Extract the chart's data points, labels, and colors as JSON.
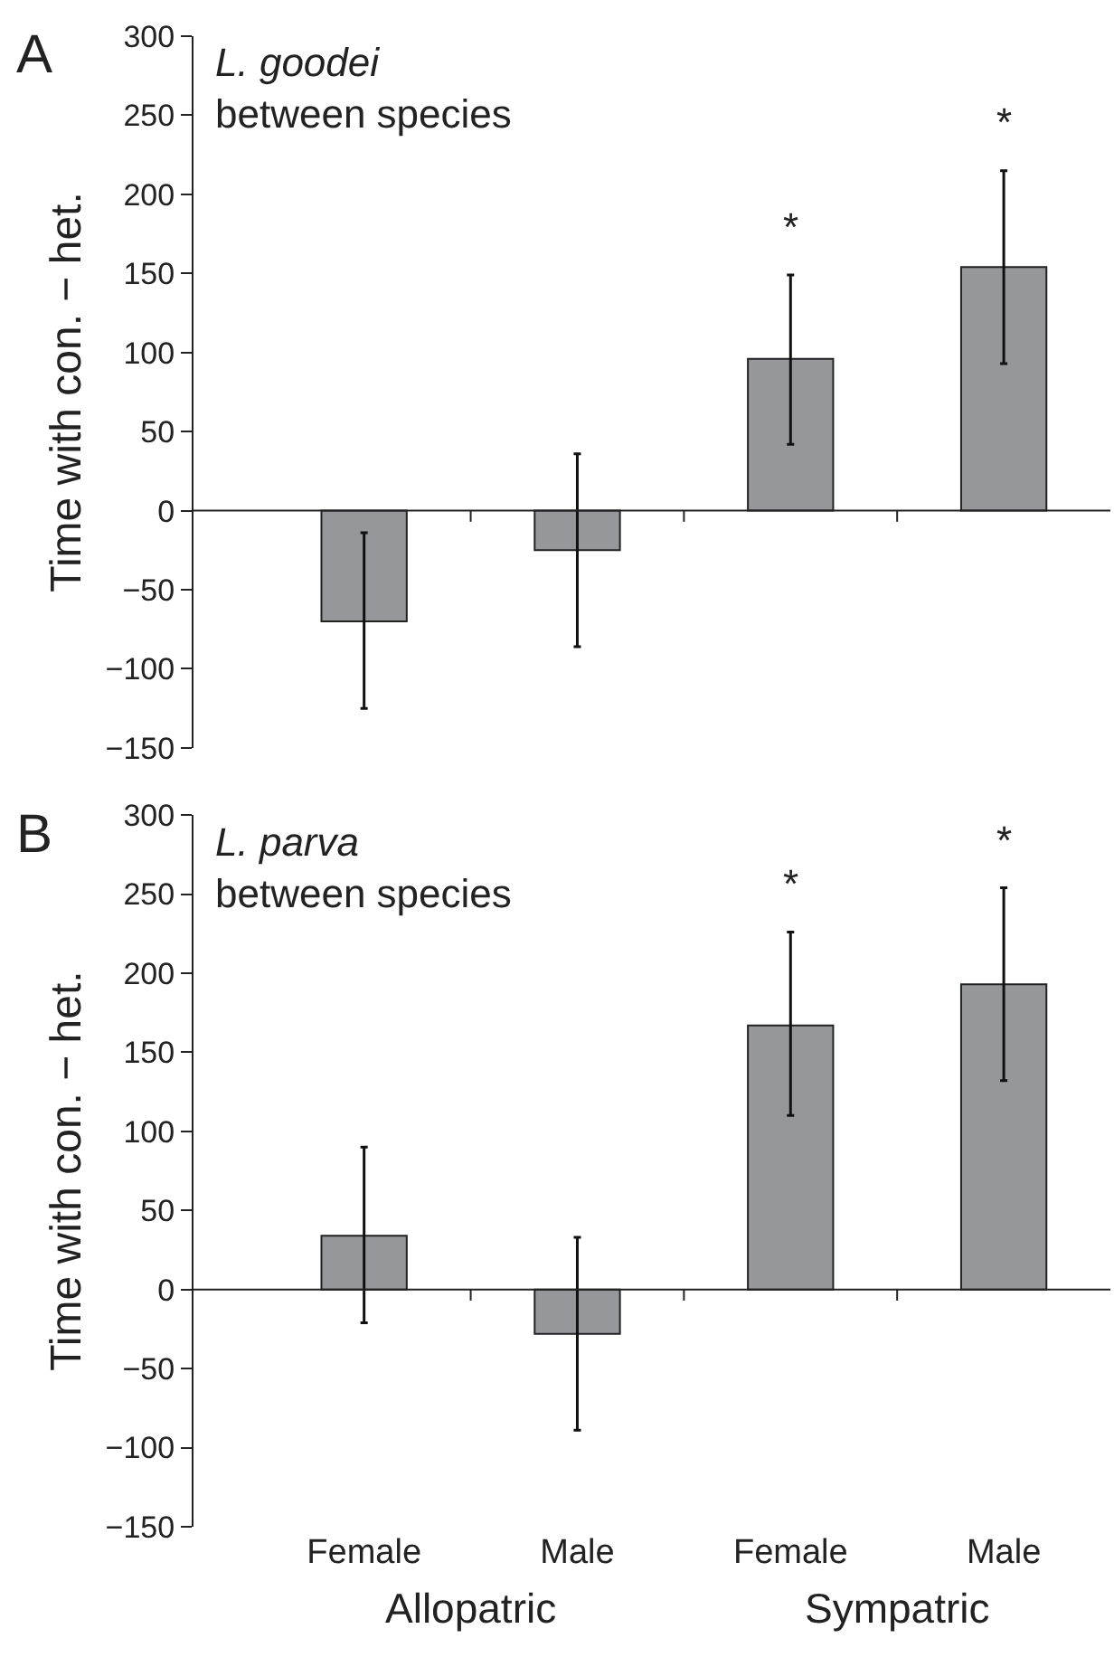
{
  "chart_data": [
    {
      "type": "bar",
      "title": "L. goodei",
      "subtitle": "between species",
      "ylabel": "Time with con. − het.",
      "annotations": [
        "A"
      ],
      "categories": [
        null,
        null,
        null,
        null
      ],
      "values": [
        -70,
        -25,
        96,
        154
      ],
      "color": "#96979b",
      "errors": [
        [
          -125,
          -14
        ],
        [
          -86,
          36
        ],
        [
          42,
          149
        ],
        [
          93,
          215
        ]
      ],
      "value_labels": [
        null,
        null,
        "*",
        "*"
      ],
      "ylim": [
        -150,
        300
      ],
      "yticks": [
        -150,
        -100,
        -50,
        0,
        50,
        100,
        150,
        200,
        250,
        300
      ],
      "tick_labels": "y"
    },
    {
      "type": "bar",
      "title": "L. parva",
      "subtitle": "between species",
      "ylabel": "Time with con. − het.",
      "annotations": [
        "B",
        "Allopatric",
        "Sympatric"
      ],
      "categories": [
        "Female",
        "Male",
        "Female",
        "Male"
      ],
      "values": [
        34,
        -28,
        167,
        193
      ],
      "color": "#96979b",
      "errors": [
        [
          -21,
          90
        ],
        [
          -89,
          33
        ],
        [
          110,
          226
        ],
        [
          132,
          254
        ]
      ],
      "value_labels": [
        null,
        null,
        "*",
        "*"
      ],
      "ylim": [
        -150,
        300
      ],
      "yticks": [
        -150,
        -100,
        -50,
        0,
        50,
        100,
        150,
        200,
        250,
        300
      ]
    }
  ]
}
